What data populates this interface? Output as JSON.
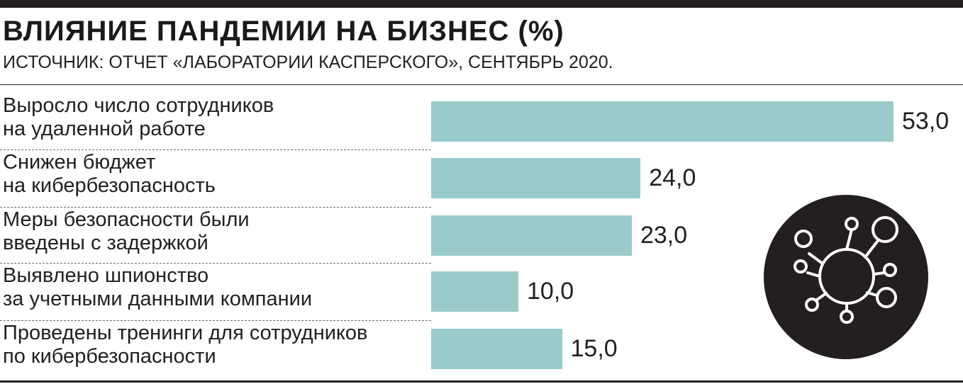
{
  "title": "ВЛИЯНИЕ ПАНДЕМИИ НА БИЗНЕС (%)",
  "subtitle": "ИСТОЧНИК: ОТЧЕТ «ЛАБОРАТОРИИ КАСПЕРСКОГО», СЕНТЯБРЬ 2020.",
  "colors": {
    "bar": "#9acbca",
    "ink": "#231f20",
    "virus_bg": "#231f20",
    "virus_stroke": "#ffffff"
  },
  "icon": "virus-icon",
  "chart_data": {
    "type": "bar",
    "orientation": "horizontal",
    "title": "ВЛИЯНИЕ ПАНДЕМИИ НА БИЗНЕС (%)",
    "subtitle": "ИСТОЧНИК: ОТЧЕТ «ЛАБОРАТОРИИ КАСПЕРСКОГО», СЕНТЯБРЬ 2020.",
    "categories": [
      [
        "Выросло число сотрудников",
        "на удаленной работе"
      ],
      [
        "Снижен бюджет",
        "на кибербезопасность"
      ],
      [
        "Меры безопасности были",
        "введены с задержкой"
      ],
      [
        "Выявлено шпионство",
        "за учетными данными компании"
      ],
      [
        "Проведены тренинги для сотрудников",
        "по кибербезопасности"
      ]
    ],
    "values": [
      53.0,
      24.0,
      23.0,
      10.0,
      15.0
    ],
    "value_labels": [
      "53,0",
      "24,0",
      "23,0",
      "10,0",
      "15,0"
    ],
    "xlim": [
      0,
      53
    ],
    "grid": false,
    "legend": "none"
  }
}
